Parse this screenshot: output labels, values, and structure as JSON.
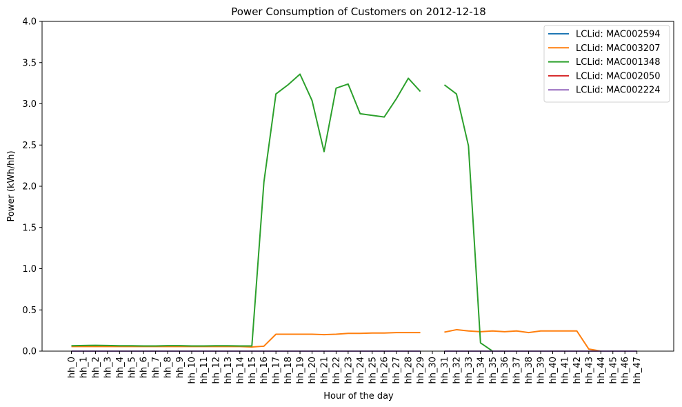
{
  "chart_data": {
    "type": "line",
    "title": "Power Consumption of Customers on 2012-12-18",
    "xlabel": "Hour of the day",
    "ylabel": "Power (kWh/hh)",
    "ylim": [
      0,
      4.0
    ],
    "yticks": [
      "0.0",
      "0.5",
      "1.0",
      "1.5",
      "2.0",
      "2.5",
      "3.0",
      "3.5",
      "4.0"
    ],
    "grid": false,
    "legend_position": "top-right",
    "categories": [
      "hh_0",
      "hh_1",
      "hh_2",
      "hh_3",
      "hh_4",
      "hh_5",
      "hh_6",
      "hh_7",
      "hh_8",
      "hh_9",
      "hh_10",
      "hh_11",
      "hh_12",
      "hh_13",
      "hh_14",
      "hh_15",
      "hh_16",
      "hh_17",
      "hh_18",
      "hh_19",
      "hh_20",
      "hh_21",
      "hh_22",
      "hh_23",
      "hh_24",
      "hh_25",
      "hh_26",
      "hh_27",
      "hh_28",
      "hh_29",
      "hh_30",
      "hh_31",
      "hh_32",
      "hh_33",
      "hh_34",
      "hh_35",
      "hh_36",
      "hh_37",
      "hh_38",
      "hh_39",
      "hh_40",
      "hh_41",
      "hh_42",
      "hh_43",
      "hh_44",
      "hh_45",
      "hh_46",
      "hh_47"
    ],
    "series": [
      {
        "name": "LCLid: MAC002594",
        "color": "#1f77b4",
        "values": [
          0,
          0,
          0,
          0,
          0,
          0,
          0,
          0,
          0,
          0,
          0,
          0,
          0,
          0,
          0,
          0,
          0,
          0,
          0,
          0,
          0,
          0,
          0,
          0,
          0,
          0,
          0,
          0,
          0,
          0,
          null,
          0,
          0,
          0,
          0,
          0,
          0,
          0,
          0,
          0,
          0,
          0,
          0,
          0,
          0,
          0,
          0,
          0
        ]
      },
      {
        "name": "LCLid: MAC003207",
        "color": "#ff7f0e",
        "values": [
          0.055,
          0.055,
          0.055,
          0.055,
          0.055,
          0.055,
          0.055,
          0.055,
          0.055,
          0.055,
          0.055,
          0.055,
          0.055,
          0.055,
          0.055,
          0.05,
          0.06,
          0.205,
          0.205,
          0.205,
          0.205,
          0.2,
          0.205,
          0.215,
          0.215,
          0.22,
          0.22,
          0.225,
          0.225,
          0.225,
          null,
          0.23,
          0.26,
          0.245,
          0.235,
          0.245,
          0.235,
          0.245,
          0.225,
          0.245,
          0.245,
          0.245,
          0.245,
          0.025,
          0,
          0,
          0,
          0
        ]
      },
      {
        "name": "LCLid: MAC001348",
        "color": "#2ca02c",
        "values": [
          0.065,
          0.068,
          0.07,
          0.068,
          0.065,
          0.065,
          0.063,
          0.063,
          0.066,
          0.066,
          0.063,
          0.063,
          0.065,
          0.065,
          0.063,
          0.063,
          2.05,
          3.12,
          3.23,
          3.36,
          3.04,
          2.42,
          3.19,
          3.24,
          2.88,
          2.86,
          2.84,
          3.06,
          3.31,
          3.15,
          null,
          3.23,
          3.12,
          2.49,
          0.1,
          0,
          0,
          0,
          0,
          0,
          0,
          0,
          0,
          0,
          0,
          0,
          0,
          0
        ]
      },
      {
        "name": "LCLid: MAC002050",
        "color": "#d62728",
        "values": [
          0,
          0,
          0,
          0,
          0,
          0,
          0,
          0,
          0,
          0,
          0,
          0,
          0,
          0,
          0,
          0,
          0,
          0,
          0,
          0,
          0,
          0,
          0,
          0,
          0,
          0,
          0,
          0,
          0,
          0,
          null,
          0,
          0,
          0,
          0,
          0,
          0,
          0,
          0,
          0,
          0,
          0,
          0,
          0,
          0,
          0,
          0,
          0
        ]
      },
      {
        "name": "LCLid: MAC002224",
        "color": "#9467bd",
        "values": [
          0,
          0,
          0,
          0,
          0,
          0,
          0,
          0,
          0,
          0,
          0,
          0,
          0,
          0,
          0,
          0,
          0,
          0,
          0,
          0,
          0,
          0,
          0,
          0,
          0,
          0,
          0,
          0,
          0,
          0,
          null,
          0,
          0,
          0,
          0,
          0,
          0,
          0,
          0,
          0,
          0,
          0,
          0,
          0,
          0,
          0,
          0,
          0
        ]
      }
    ]
  }
}
